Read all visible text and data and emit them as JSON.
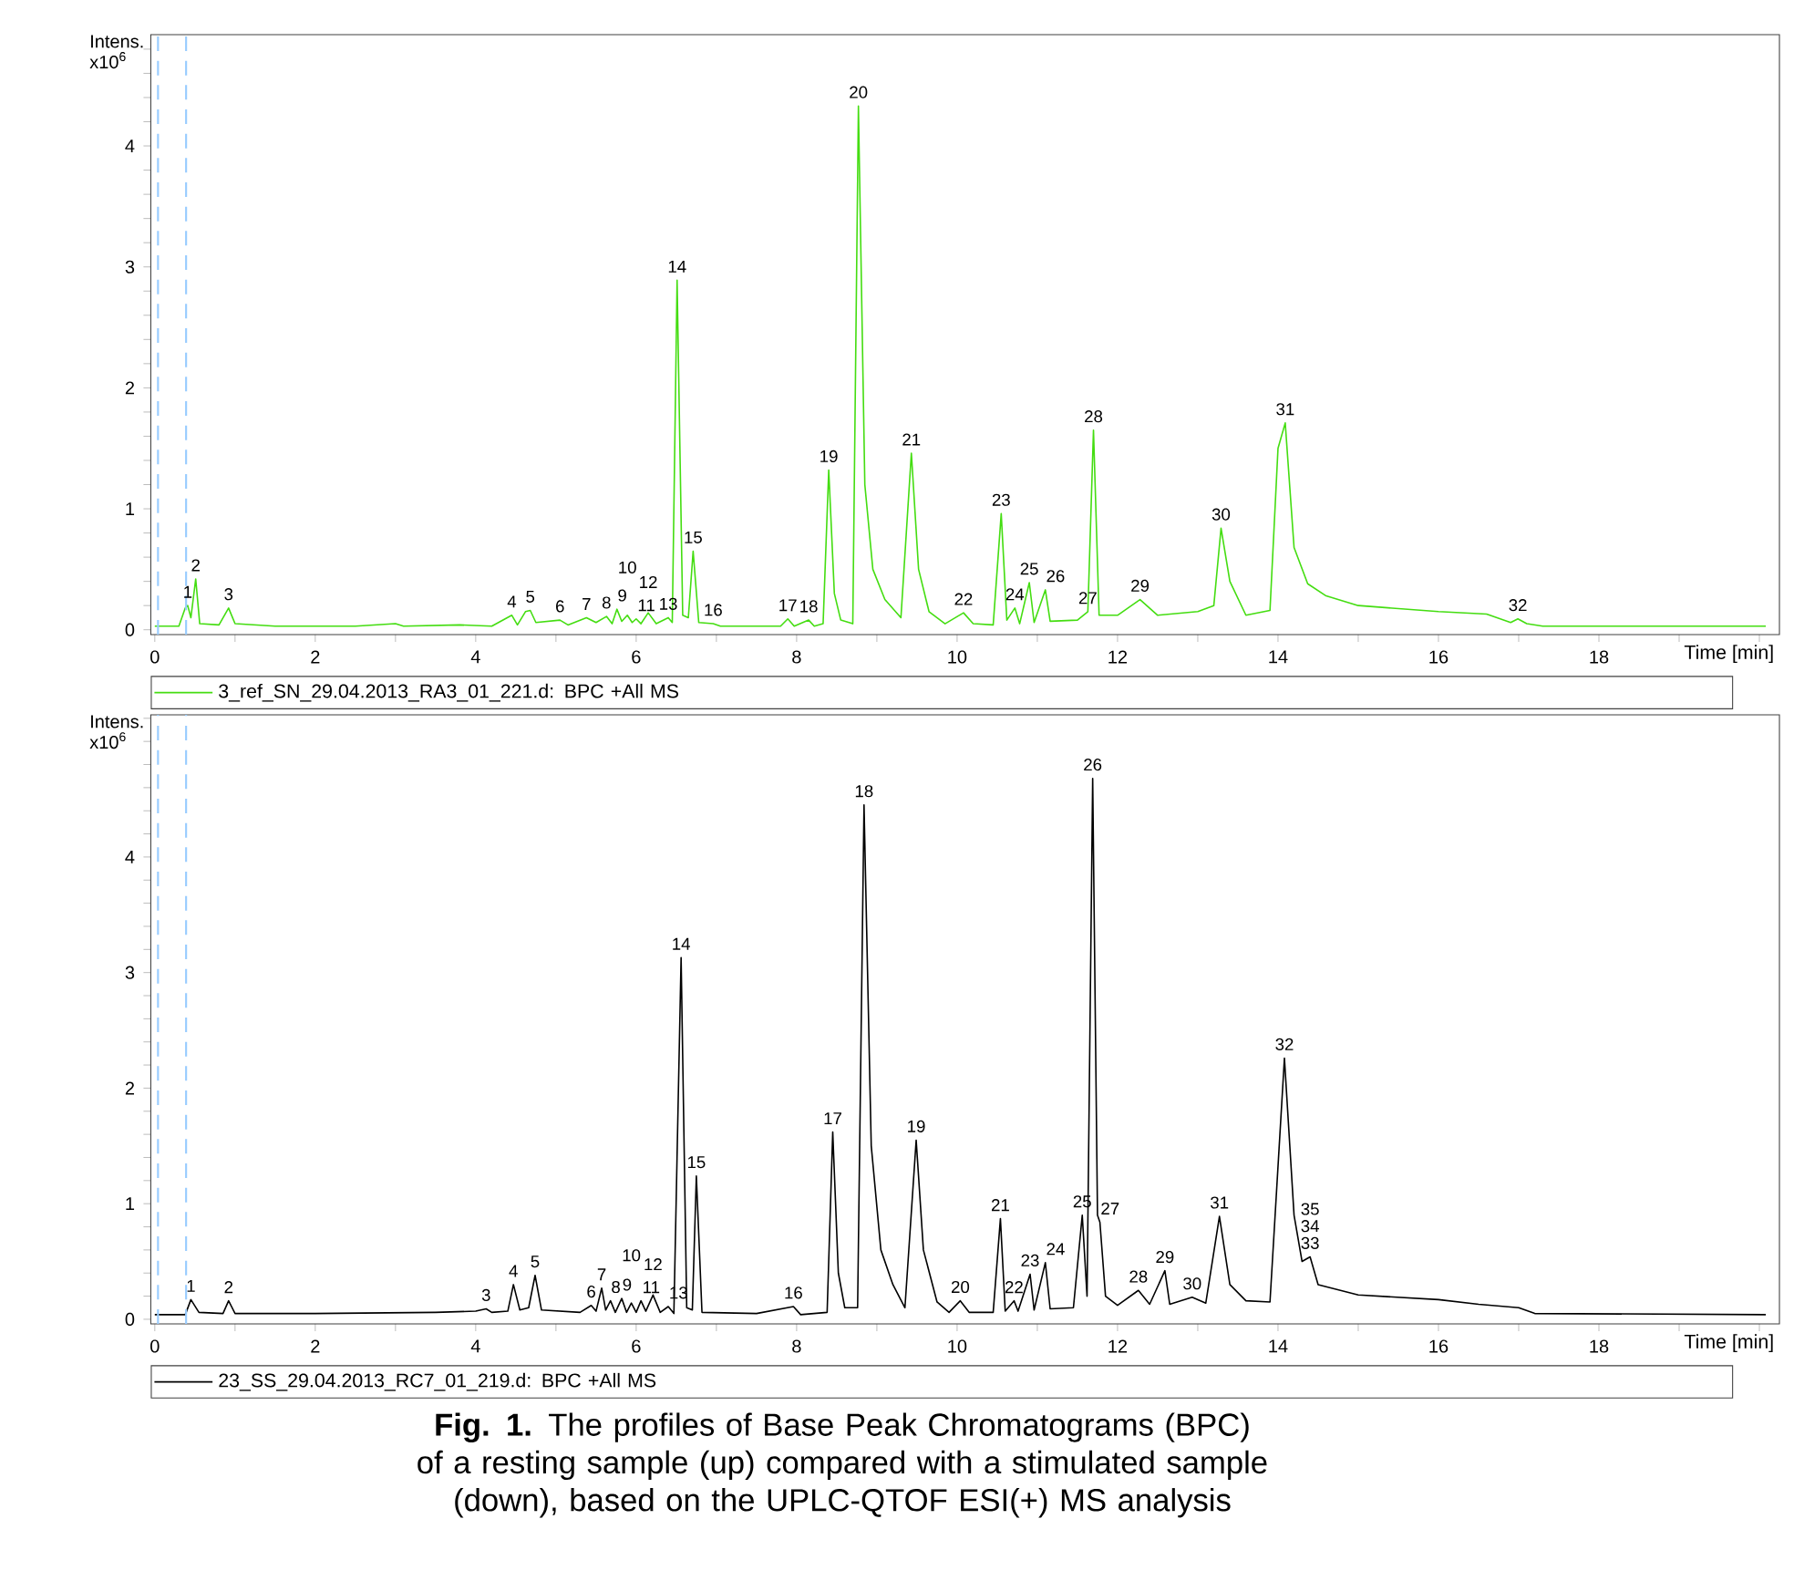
{
  "chart_data": [
    {
      "type": "line",
      "xlabel": "Time [min]",
      "ylabel": "Intens. x10$^{6}$",
      "legend": "bottom",
      "xlim": [
        -0.05,
        20.25
      ],
      "ylim": [
        -0.04,
        4.92
      ],
      "xticks": [
        0,
        {
          "value": 1,
          "label": null
        },
        2,
        {
          "value": 3,
          "label": null
        },
        4,
        {
          "value": 5,
          "label": null
        },
        6,
        {
          "value": 7,
          "label": null
        },
        8,
        {
          "value": 9,
          "label": null
        },
        10,
        {
          "value": 11,
          "label": null
        },
        12,
        {
          "value": 13,
          "label": null
        },
        14,
        {
          "value": 15,
          "label": null
        },
        16,
        {
          "value": 17,
          "label": null
        },
        18,
        {
          "value": 19,
          "label": null
        },
        {
          "value": 20,
          "label": null
        }
      ],
      "yticks": [
        0,
        {
          "value": 0.2,
          "label": null
        },
        {
          "value": 0.4,
          "label": null
        },
        {
          "value": 0.6,
          "label": null
        },
        {
          "value": 0.8,
          "label": null
        },
        1,
        {
          "value": 1.2,
          "label": null
        },
        {
          "value": 1.4,
          "label": null
        },
        {
          "value": 1.6,
          "label": null
        },
        {
          "value": 1.8,
          "label": null
        },
        2,
        {
          "value": 2.2,
          "label": null
        },
        {
          "value": 2.4,
          "label": null
        },
        {
          "value": 2.6,
          "label": null
        },
        {
          "value": 2.8,
          "label": null
        },
        3,
        {
          "value": 3.2,
          "label": null
        },
        {
          "value": 3.4,
          "label": null
        },
        {
          "value": 3.6,
          "label": null
        },
        {
          "value": 3.8,
          "label": null
        },
        4,
        {
          "value": 4.2,
          "label": null
        },
        {
          "value": 4.4,
          "label": null
        },
        {
          "value": 4.6,
          "label": null
        },
        {
          "value": 4.8,
          "label": null
        }
      ],
      "ref_lines": [
        {
          "axis": "x",
          "value": 0.04,
          "color": "#99ccff",
          "line_style": "dashed"
        },
        {
          "axis": "x",
          "value": 0.39,
          "color": "#99ccff",
          "line_style": "dashed"
        }
      ],
      "series": [
        {
          "name": "3_ref_SN_29.04.2013_RA3_01_221.d: BPC +All MS",
          "color": "#44dd11",
          "x": [
            0.0,
            0.3,
            0.38,
            0.41,
            0.45,
            0.51,
            0.56,
            0.8,
            0.92,
            1.0,
            1.5,
            2.5,
            3.0,
            3.1,
            3.8,
            4.2,
            4.45,
            4.52,
            4.62,
            4.68,
            4.75,
            5.05,
            5.15,
            5.38,
            5.5,
            5.63,
            5.7,
            5.76,
            5.82,
            5.89,
            5.95,
            6.0,
            6.06,
            6.15,
            6.25,
            6.4,
            6.45,
            6.51,
            6.58,
            6.65,
            6.71,
            6.78,
            6.96,
            7.05,
            7.8,
            7.89,
            7.97,
            8.15,
            8.22,
            8.33,
            8.4,
            8.47,
            8.55,
            8.7,
            8.77,
            8.85,
            8.95,
            9.1,
            9.3,
            9.43,
            9.52,
            9.65,
            9.85,
            10.08,
            10.2,
            10.45,
            10.55,
            10.62,
            10.72,
            10.78,
            10.9,
            10.96,
            11.1,
            11.16,
            11.5,
            11.63,
            11.7,
            11.77,
            12.0,
            12.28,
            12.5,
            13.0,
            13.2,
            13.29,
            13.4,
            13.6,
            13.9,
            14.0,
            14.09,
            14.2,
            14.37,
            14.6,
            15.0,
            16.0,
            16.6,
            16.9,
            16.99,
            17.1,
            17.3,
            20.08
          ],
          "values": [
            0.03,
            0.03,
            0.18,
            0.2,
            0.1,
            0.42,
            0.05,
            0.04,
            0.18,
            0.05,
            0.03,
            0.03,
            0.05,
            0.03,
            0.04,
            0.03,
            0.12,
            0.04,
            0.15,
            0.16,
            0.06,
            0.08,
            0.04,
            0.1,
            0.06,
            0.11,
            0.05,
            0.17,
            0.07,
            0.12,
            0.06,
            0.09,
            0.05,
            0.14,
            0.05,
            0.1,
            0.06,
            2.89,
            0.12,
            0.1,
            0.65,
            0.06,
            0.05,
            0.03,
            0.03,
            0.09,
            0.03,
            0.08,
            0.03,
            0.05,
            1.32,
            0.3,
            0.08,
            0.05,
            4.33,
            1.2,
            0.5,
            0.25,
            0.1,
            1.46,
            0.5,
            0.15,
            0.05,
            0.14,
            0.05,
            0.04,
            0.96,
            0.08,
            0.18,
            0.05,
            0.39,
            0.06,
            0.33,
            0.07,
            0.08,
            0.15,
            1.65,
            0.12,
            0.12,
            0.25,
            0.12,
            0.15,
            0.2,
            0.84,
            0.4,
            0.12,
            0.16,
            1.5,
            1.71,
            0.68,
            0.38,
            0.28,
            0.2,
            0.15,
            0.13,
            0.06,
            0.09,
            0.05,
            0.03,
            0.03
          ]
        }
      ],
      "annotations": [
        {
          "text": "1",
          "x": 0.41,
          "y": 0.2
        },
        {
          "text": "2",
          "x": 0.51,
          "y": 0.42
        },
        {
          "text": "3",
          "x": 0.92,
          "y": 0.18
        },
        {
          "text": "4",
          "x": 4.45,
          "y": 0.12
        },
        {
          "text": "5",
          "x": 4.68,
          "y": 0.16
        },
        {
          "text": "6",
          "x": 5.05,
          "y": 0.08
        },
        {
          "text": "7",
          "x": 5.38,
          "y": 0.1
        },
        {
          "text": "8",
          "x": 5.63,
          "y": 0.11
        },
        {
          "text": "9",
          "x": 5.76,
          "y": 0.17
        },
        {
          "text": "10",
          "x": 5.89,
          "y": 0.12
        },
        {
          "text": "11",
          "x": 6.0,
          "y": 0.09
        },
        {
          "text": "12",
          "x": 6.15,
          "y": 0.14
        },
        {
          "text": "13",
          "x": 6.4,
          "y": 0.1
        },
        {
          "text": "14",
          "x": 6.51,
          "y": 2.89
        },
        {
          "text": "15",
          "x": 6.71,
          "y": 0.65
        },
        {
          "text": "16",
          "x": 6.96,
          "y": 0.05
        },
        {
          "text": "17",
          "x": 7.89,
          "y": 0.09
        },
        {
          "text": "18",
          "x": 8.15,
          "y": 0.08
        },
        {
          "text": "19",
          "x": 8.4,
          "y": 1.32
        },
        {
          "text": "20",
          "x": 8.77,
          "y": 4.33
        },
        {
          "text": "21",
          "x": 9.43,
          "y": 1.46
        },
        {
          "text": "22",
          "x": 10.08,
          "y": 0.14
        },
        {
          "text": "23",
          "x": 10.55,
          "y": 0.96
        },
        {
          "text": "24",
          "x": 10.72,
          "y": 0.18
        },
        {
          "text": "25",
          "x": 10.9,
          "y": 0.39
        },
        {
          "text": "26",
          "x": 11.1,
          "y": 0.33
        },
        {
          "text": "27",
          "x": 11.63,
          "y": 0.15
        },
        {
          "text": "28",
          "x": 11.7,
          "y": 1.65
        },
        {
          "text": "29",
          "x": 12.28,
          "y": 0.25
        },
        {
          "text": "30",
          "x": 13.29,
          "y": 0.84
        },
        {
          "text": "31",
          "x": 14.09,
          "y": 1.71
        },
        {
          "text": "32",
          "x": 16.99,
          "y": 0.09
        }
      ]
    },
    {
      "type": "line",
      "xlabel": "Time [min]",
      "ylabel": "Intens. x10$^{6}$",
      "legend": "bottom",
      "xlim": [
        -0.05,
        20.25
      ],
      "ylim": [
        -0.04,
        5.23
      ],
      "xticks": [
        0,
        {
          "value": 1,
          "label": null
        },
        2,
        {
          "value": 3,
          "label": null
        },
        4,
        {
          "value": 5,
          "label": null
        },
        6,
        {
          "value": 7,
          "label": null
        },
        8,
        {
          "value": 9,
          "label": null
        },
        10,
        {
          "value": 11,
          "label": null
        },
        12,
        {
          "value": 13,
          "label": null
        },
        14,
        {
          "value": 15,
          "label": null
        },
        16,
        {
          "value": 17,
          "label": null
        },
        18,
        {
          "value": 19,
          "label": null
        },
        {
          "value": 20,
          "label": null
        }
      ],
      "yticks": [
        0,
        {
          "value": 0.2,
          "label": null
        },
        {
          "value": 0.4,
          "label": null
        },
        {
          "value": 0.6,
          "label": null
        },
        {
          "value": 0.8,
          "label": null
        },
        1,
        {
          "value": 1.2,
          "label": null
        },
        {
          "value": 1.4,
          "label": null
        },
        {
          "value": 1.6,
          "label": null
        },
        {
          "value": 1.8,
          "label": null
        },
        2,
        {
          "value": 2.2,
          "label": null
        },
        {
          "value": 2.4,
          "label": null
        },
        {
          "value": 2.6,
          "label": null
        },
        {
          "value": 2.8,
          "label": null
        },
        3,
        {
          "value": 3.2,
          "label": null
        },
        {
          "value": 3.4,
          "label": null
        },
        {
          "value": 3.6,
          "label": null
        },
        {
          "value": 3.8,
          "label": null
        },
        4,
        {
          "value": 4.2,
          "label": null
        },
        {
          "value": 4.4,
          "label": null
        },
        {
          "value": 4.6,
          "label": null
        },
        {
          "value": 4.8,
          "label": null
        },
        {
          "value": 5.0,
          "label": null
        },
        {
          "value": 5.2,
          "label": null
        }
      ],
      "ref_lines": [
        {
          "axis": "x",
          "value": 0.04,
          "color": "#99ccff",
          "line_style": "dashed"
        },
        {
          "axis": "x",
          "value": 0.39,
          "color": "#99ccff",
          "line_style": "dashed"
        }
      ],
      "series": [
        {
          "name": "23_SS_29.04.2013_RC7_01_219.d: BPC +All MS",
          "color": "#000000",
          "x": [
            0.0,
            0.38,
            0.45,
            0.55,
            0.85,
            0.92,
            1.0,
            2.0,
            3.5,
            4.0,
            4.13,
            4.2,
            4.4,
            4.47,
            4.55,
            4.66,
            4.74,
            4.82,
            5.3,
            5.44,
            5.5,
            5.57,
            5.62,
            5.68,
            5.74,
            5.82,
            5.88,
            5.94,
            6.0,
            6.06,
            6.12,
            6.21,
            6.3,
            6.4,
            6.47,
            6.56,
            6.63,
            6.7,
            6.75,
            6.82,
            7.5,
            7.96,
            8.05,
            8.38,
            8.45,
            8.52,
            8.6,
            8.76,
            8.84,
            8.93,
            9.05,
            9.2,
            9.35,
            9.49,
            9.58,
            9.75,
            9.9,
            10.04,
            10.15,
            10.45,
            10.54,
            10.6,
            10.71,
            10.76,
            10.91,
            10.96,
            11.1,
            11.16,
            11.45,
            11.56,
            11.62,
            11.69,
            11.75,
            11.78,
            11.85,
            12.0,
            12.26,
            12.4,
            12.59,
            12.65,
            12.93,
            13.1,
            13.27,
            13.4,
            13.6,
            13.9,
            14.08,
            14.2,
            14.3,
            14.4,
            14.5,
            15.0,
            16.0,
            16.5,
            17.0,
            17.2,
            20.08
          ],
          "values": [
            0.04,
            0.04,
            0.17,
            0.06,
            0.05,
            0.16,
            0.05,
            0.05,
            0.06,
            0.07,
            0.09,
            0.06,
            0.07,
            0.3,
            0.08,
            0.1,
            0.38,
            0.08,
            0.06,
            0.12,
            0.07,
            0.27,
            0.08,
            0.16,
            0.06,
            0.18,
            0.06,
            0.14,
            0.06,
            0.16,
            0.07,
            0.21,
            0.06,
            0.11,
            0.05,
            3.13,
            0.1,
            0.08,
            1.24,
            0.06,
            0.05,
            0.11,
            0.04,
            0.06,
            1.62,
            0.4,
            0.1,
            0.1,
            4.45,
            1.5,
            0.6,
            0.3,
            0.1,
            1.55,
            0.6,
            0.15,
            0.06,
            0.16,
            0.06,
            0.06,
            0.87,
            0.07,
            0.16,
            0.07,
            0.39,
            0.08,
            0.49,
            0.09,
            0.1,
            0.9,
            0.2,
            4.68,
            0.9,
            0.84,
            0.2,
            0.12,
            0.25,
            0.13,
            0.42,
            0.13,
            0.19,
            0.14,
            0.89,
            0.3,
            0.16,
            0.15,
            2.26,
            0.9,
            0.5,
            0.54,
            0.3,
            0.21,
            0.17,
            0.13,
            0.1,
            0.05,
            0.04
          ]
        }
      ],
      "annotations": [
        {
          "text": "1",
          "x": 0.45,
          "y": 0.17
        },
        {
          "text": "2",
          "x": 0.92,
          "y": 0.16
        },
        {
          "text": "3",
          "x": 4.13,
          "y": 0.09
        },
        {
          "text": "4",
          "x": 4.47,
          "y": 0.3
        },
        {
          "text": "5",
          "x": 4.74,
          "y": 0.38
        },
        {
          "text": "6",
          "x": 5.44,
          "y": 0.12
        },
        {
          "text": "7",
          "x": 5.57,
          "y": 0.27
        },
        {
          "text": "8",
          "x": 5.68,
          "y": 0.16
        },
        {
          "text": "9",
          "x": 5.82,
          "y": 0.18
        },
        {
          "text": "10",
          "x": 5.94,
          "y": 0.14
        },
        {
          "text": "11",
          "x": 6.06,
          "y": 0.16
        },
        {
          "text": "12",
          "x": 6.21,
          "y": 0.21
        },
        {
          "text": "13",
          "x": 6.4,
          "y": 0.11
        },
        {
          "text": "14",
          "x": 6.56,
          "y": 3.13
        },
        {
          "text": "15",
          "x": 6.75,
          "y": 1.24
        },
        {
          "text": "16",
          "x": 7.96,
          "y": 0.11
        },
        {
          "text": "17",
          "x": 8.45,
          "y": 1.62
        },
        {
          "text": "18",
          "x": 8.84,
          "y": 4.45
        },
        {
          "text": "19",
          "x": 9.49,
          "y": 1.55
        },
        {
          "text": "20",
          "x": 10.04,
          "y": 0.16
        },
        {
          "text": "21",
          "x": 10.54,
          "y": 0.87
        },
        {
          "text": "22",
          "x": 10.71,
          "y": 0.16
        },
        {
          "text": "23",
          "x": 10.91,
          "y": 0.39
        },
        {
          "text": "24",
          "x": 11.1,
          "y": 0.49
        },
        {
          "text": "25",
          "x": 11.56,
          "y": 0.9
        },
        {
          "text": "26",
          "x": 11.69,
          "y": 4.68
        },
        {
          "text": "27",
          "x": 11.78,
          "y": 0.84
        },
        {
          "text": "28",
          "x": 12.26,
          "y": 0.25
        },
        {
          "text": "29",
          "x": 12.59,
          "y": 0.42
        },
        {
          "text": "30",
          "x": 12.93,
          "y": 0.19
        },
        {
          "text": "31",
          "x": 13.27,
          "y": 0.89
        },
        {
          "text": "32",
          "x": 14.08,
          "y": 2.26
        },
        {
          "text": "33",
          "x": 14.4,
          "y": 0.54
        },
        {
          "text": "34",
          "x": 14.4,
          "y": 0.54
        },
        {
          "text": "35",
          "x": 14.4,
          "y": 0.54
        },
        "**Fig. 1.** The profiles of Base Peak Chromatograms (BPC) of a resting sample (up) compared with a stimulated sample (down), based on the UPLC-QTOF ESI(+) MS analysis"
      ]
    }
  ]
}
